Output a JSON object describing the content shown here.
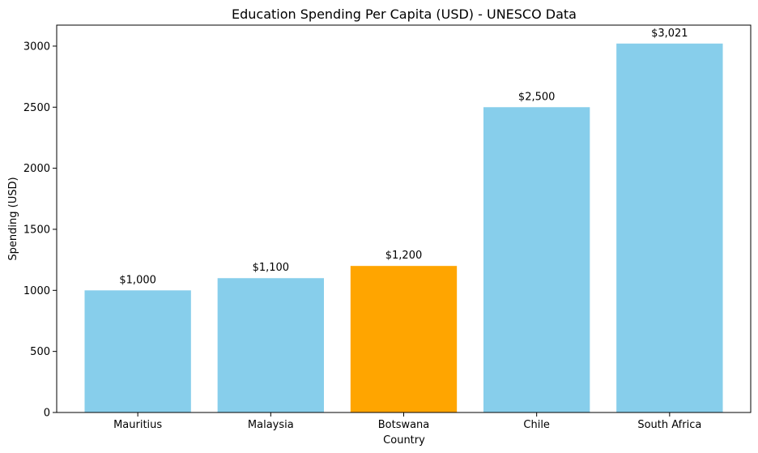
{
  "chart_data": {
    "type": "bar",
    "title": "Education Spending Per Capita (USD) - UNESCO Data",
    "xlabel": "Country",
    "ylabel": "Spending (USD)",
    "categories": [
      "Mauritius",
      "Malaysia",
      "Botswana",
      "Chile",
      "South Africa"
    ],
    "values": [
      1000,
      1100,
      1200,
      2500,
      3021
    ],
    "data_labels": [
      "$1,000",
      "$1,100",
      "$1,200",
      "$2,500",
      "$3,021"
    ],
    "colors": [
      "#87CEEB",
      "#87CEEB",
      "#FFA500",
      "#87CEEB",
      "#87CEEB"
    ],
    "ylim": [
      0,
      3172
    ],
    "yticks": [
      0,
      500,
      1000,
      1500,
      2000,
      2500,
      3000
    ],
    "grid": false,
    "legend": "none"
  }
}
